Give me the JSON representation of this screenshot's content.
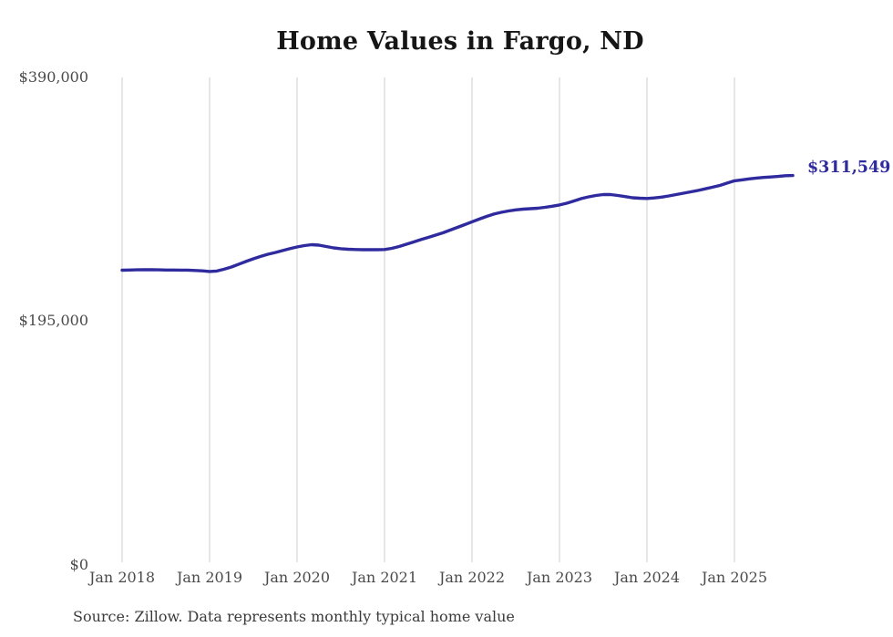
{
  "chart_data": {
    "type": "line",
    "title": "Home Values in Fargo, ND",
    "x_tick_labels": [
      "Jan 2018",
      "Jan 2019",
      "Jan 2020",
      "Jan 2021",
      "Jan 2022",
      "Jan 2023",
      "Jan 2024",
      "Jan 2025"
    ],
    "y_tick_labels": [
      "$390,000",
      "$195,000",
      "$0"
    ],
    "ylim": [
      0,
      390000
    ],
    "x_start": "2018-01",
    "x_end": "2025-09",
    "x_interval": "monthly",
    "grid": "vertical-only",
    "legend": "none",
    "end_label": "$311,549",
    "end_value": 311549,
    "line_color": "#2f2b9e",
    "grid_color": "#cccccc",
    "series": [
      {
        "name": "Typical home value",
        "values": [
          235800,
          236000,
          236100,
          236200,
          236200,
          236100,
          236000,
          236000,
          235900,
          235900,
          235600,
          235300,
          234800,
          235200,
          236600,
          238400,
          240600,
          242800,
          244900,
          246800,
          248600,
          250000,
          251500,
          253000,
          254400,
          255500,
          256200,
          255900,
          254800,
          253700,
          253000,
          252600,
          252400,
          252200,
          252200,
          252200,
          252400,
          253300,
          254800,
          256600,
          258400,
          260300,
          262100,
          263900,
          265700,
          267900,
          270100,
          272300,
          274500,
          276700,
          278800,
          280700,
          282100,
          283200,
          284100,
          284700,
          285000,
          285400,
          286100,
          287000,
          288000,
          289400,
          291200,
          293100,
          294500,
          295600,
          296300,
          296300,
          295600,
          294700,
          293800,
          293400,
          293200,
          293600,
          294300,
          295200,
          296300,
          297400,
          298500,
          299600,
          300900,
          302200,
          303600,
          305500,
          307300,
          308100,
          308900,
          309500,
          310000,
          310400,
          310800,
          311400,
          311549
        ]
      }
    ]
  },
  "footer": {
    "source_note": "Source: Zillow. Data represents monthly typical home value"
  }
}
